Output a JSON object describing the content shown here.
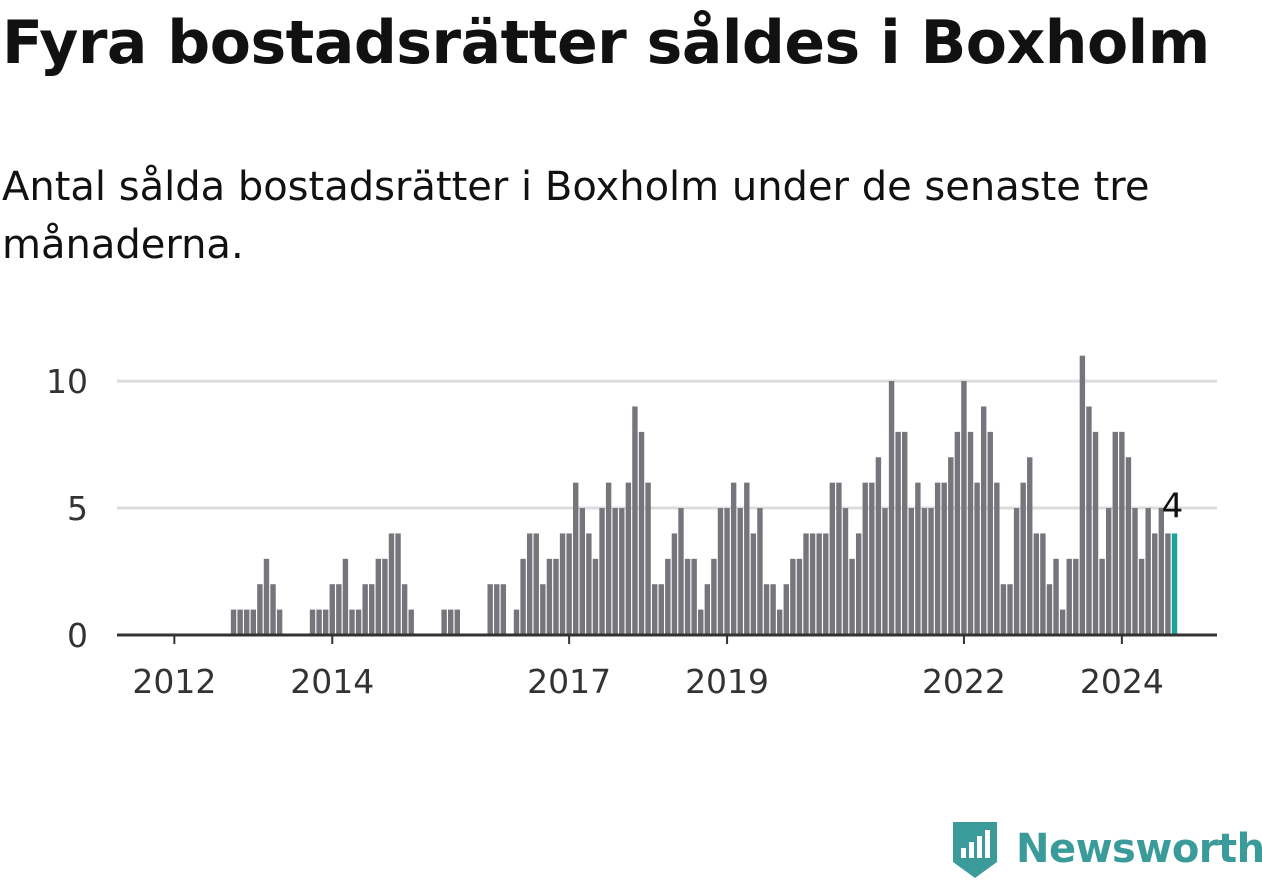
{
  "title": "Fyra bostadsrätter såldes i Boxholm",
  "subtitle": "Antal sålda bostadsrätter i Boxholm under de senaste tre månaderna.",
  "brand": {
    "name": "Newsworthy",
    "icon": "newsworthy-logo-icon",
    "color": "#3a9b9a"
  },
  "colors": {
    "bar": "#76757b",
    "highlight": "#1aa59a",
    "grid": "#dcdcdc",
    "axis": "#333333"
  },
  "chart_data": {
    "type": "bar",
    "xlabel": "",
    "ylabel": "",
    "ylim": [
      0,
      11.5
    ],
    "yticks": [
      0,
      5,
      10
    ],
    "x_tick_labels": [
      {
        "label": "2012",
        "index": 8
      },
      {
        "label": "2014",
        "index": 32
      },
      {
        "label": "2017",
        "index": 68
      },
      {
        "label": "2019",
        "index": 92
      },
      {
        "label": "2022",
        "index": 128
      },
      {
        "label": "2024",
        "index": 152
      }
    ],
    "grid": true,
    "first_period": "2011-01",
    "frequency": "monthly",
    "values": [
      0,
      0,
      0,
      0,
      0,
      0,
      0,
      0,
      0,
      0,
      0,
      0,
      0,
      0,
      0,
      0,
      0,
      1,
      1,
      1,
      1,
      2,
      3,
      2,
      1,
      0,
      0,
      0,
      0,
      1,
      1,
      1,
      2,
      2,
      3,
      1,
      1,
      2,
      2,
      3,
      3,
      4,
      4,
      2,
      1,
      0,
      0,
      0,
      0,
      1,
      1,
      1,
      0,
      0,
      0,
      0,
      2,
      2,
      2,
      0,
      1,
      3,
      4,
      4,
      2,
      3,
      3,
      4,
      4,
      6,
      5,
      4,
      3,
      5,
      6,
      5,
      5,
      6,
      9,
      8,
      6,
      2,
      2,
      3,
      4,
      5,
      3,
      3,
      1,
      2,
      3,
      5,
      5,
      6,
      5,
      6,
      4,
      5,
      2,
      2,
      1,
      2,
      3,
      3,
      4,
      4,
      4,
      4,
      6,
      6,
      5,
      3,
      4,
      6,
      6,
      7,
      5,
      10,
      8,
      8,
      5,
      6,
      5,
      5,
      6,
      6,
      7,
      8,
      10,
      8,
      6,
      9,
      8,
      6,
      2,
      2,
      5,
      6,
      7,
      4,
      4,
      2,
      3,
      1,
      3,
      3,
      11,
      9,
      8,
      3,
      5,
      8,
      8,
      7,
      5,
      3,
      5,
      4,
      5,
      4,
      4
    ],
    "highlight_index": 160,
    "highlight_label": "4"
  }
}
